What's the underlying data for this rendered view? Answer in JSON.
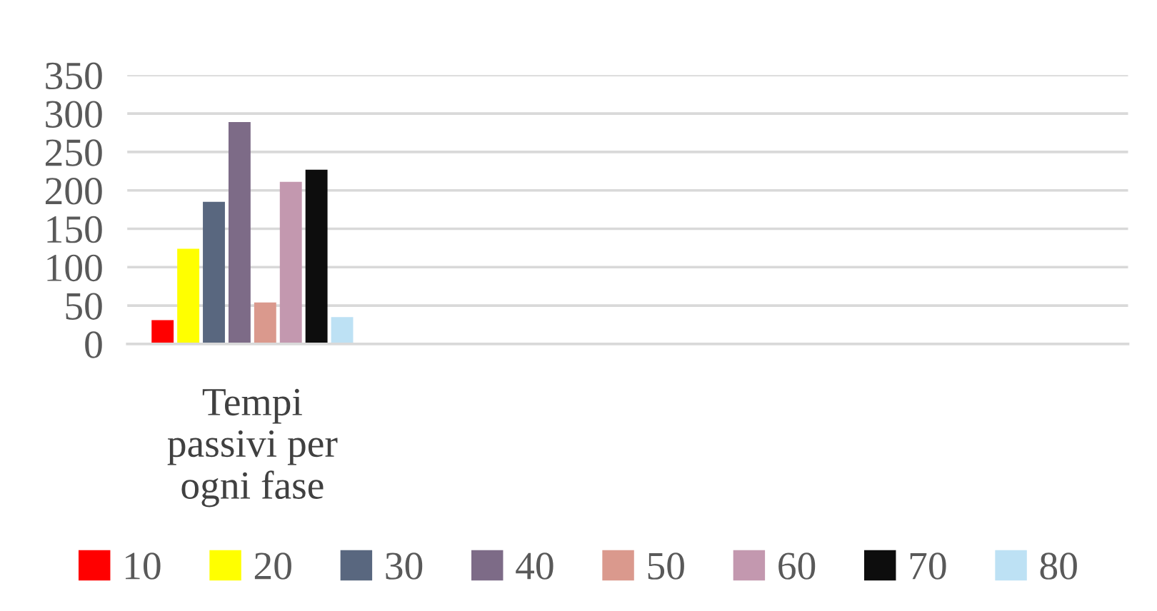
{
  "chart_data": {
    "type": "bar",
    "categories": [
      "Tempi passivi per ogni fase",
      null,
      null,
      null
    ],
    "series": [
      {
        "name": "10",
        "color": "#ff0000",
        "values": [
          31,
          null,
          null,
          null
        ]
      },
      {
        "name": "20",
        "color": "#ffff00",
        "values": [
          124,
          null,
          null,
          null
        ]
      },
      {
        "name": "30",
        "color": "#59677f",
        "values": [
          185,
          null,
          null,
          null
        ]
      },
      {
        "name": "40",
        "color": "#7d6b87",
        "values": [
          289,
          null,
          null,
          null
        ]
      },
      {
        "name": "50",
        "color": "#da998d",
        "values": [
          54,
          null,
          null,
          null
        ]
      },
      {
        "name": "60",
        "color": "#c398af",
        "values": [
          211,
          null,
          null,
          null
        ]
      },
      {
        "name": "70",
        "color": "#0d0d0d",
        "values": [
          227,
          null,
          null,
          null
        ]
      },
      {
        "name": "80",
        "color": "#bde1f4",
        "values": [
          35,
          null,
          null,
          null
        ]
      }
    ],
    "ylim": [
      0,
      350
    ],
    "yticks": [
      0,
      50,
      100,
      150,
      200,
      250,
      300,
      350
    ],
    "grid": "y",
    "legend": "bottom"
  }
}
